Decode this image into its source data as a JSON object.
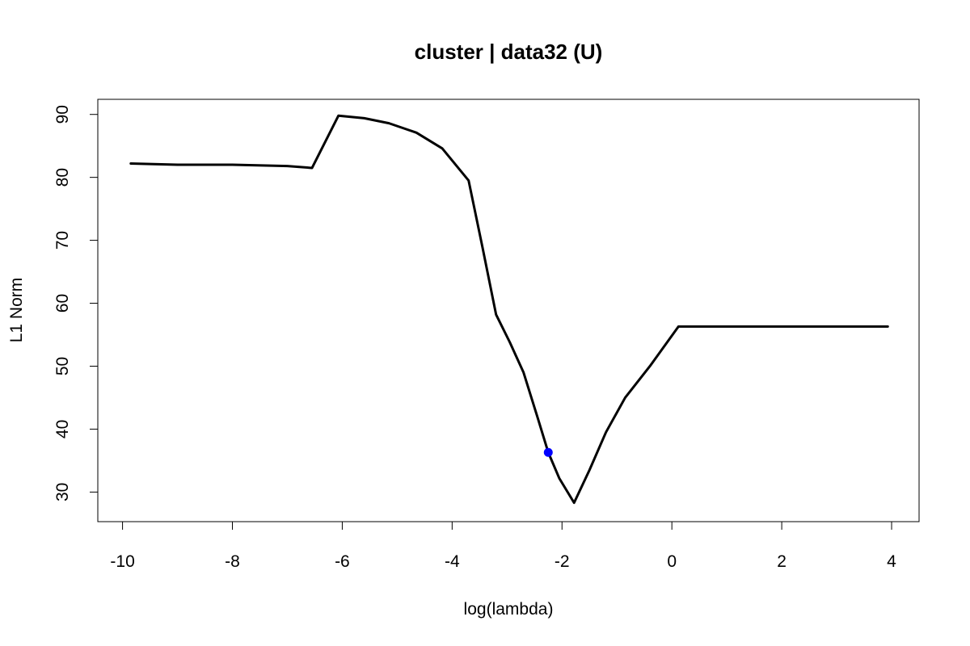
{
  "chart_data": {
    "type": "line",
    "title": "cluster | data32 (U)",
    "xlabel": "log(lambda)",
    "ylabel": "L1 Norm",
    "xlim": [
      -10.45,
      4.5
    ],
    "ylim": [
      25.3,
      92.4
    ],
    "x_ticks": [
      -10,
      -8,
      -6,
      -4,
      -2,
      0,
      2,
      4
    ],
    "x_tick_labels": [
      "-10",
      "-8",
      "-6",
      "-4",
      "-2",
      "0",
      "2",
      "4"
    ],
    "y_ticks": [
      30,
      40,
      50,
      60,
      70,
      80,
      90
    ],
    "y_tick_labels": [
      "30",
      "40",
      "50",
      "60",
      "70",
      "80",
      "90"
    ],
    "grid": false,
    "series": [
      {
        "x": [
          -9.85,
          -9.0,
          -8.0,
          -7.0,
          -6.55,
          -6.07,
          -5.6,
          -5.15,
          -4.65,
          -4.18,
          -3.7,
          -3.45,
          -3.2,
          -2.95,
          -2.7,
          -2.45,
          -2.25,
          -2.05,
          -1.78,
          -1.5,
          -1.2,
          -0.85,
          -0.4,
          0.12,
          0.5,
          1.0,
          2.0,
          3.0,
          3.93
        ],
        "y": [
          82.2,
          82.0,
          82.0,
          81.8,
          81.5,
          89.8,
          89.4,
          88.6,
          87.1,
          84.6,
          79.5,
          69.0,
          58.2,
          53.8,
          49.0,
          42.0,
          36.3,
          32.2,
          28.3,
          33.5,
          39.5,
          45.0,
          50.0,
          56.3,
          56.3,
          56.3,
          56.3,
          56.3,
          56.3
        ],
        "color": "#000000"
      }
    ],
    "highlight_point": {
      "x": -2.25,
      "y": 36.3,
      "color": "#0000ff"
    }
  }
}
